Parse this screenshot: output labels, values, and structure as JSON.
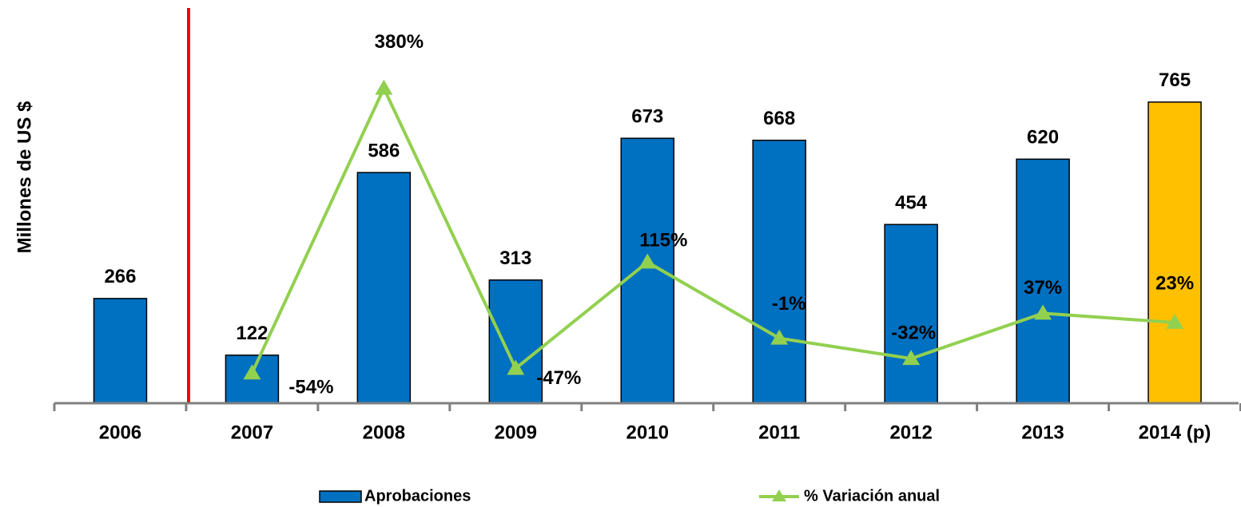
{
  "chart_data": {
    "type": "bar",
    "y_label": "Millones de US $",
    "categories": [
      "2006",
      "2007",
      "2008",
      "2009",
      "2010",
      "2011",
      "2012",
      "2013",
      "2014 (p)"
    ],
    "ylim": [
      0,
      1000
    ],
    "y2lim": [
      -100,
      500
    ],
    "legend": "bottom",
    "series": [
      {
        "name": "Aprobaciones",
        "type": "bar",
        "color": "#0070c0",
        "point_colors": [
          "#0070c0",
          "#0070c0",
          "#0070c0",
          "#0070c0",
          "#0070c0",
          "#0070c0",
          "#0070c0",
          "#0070c0",
          "#ffc000"
        ],
        "values": [
          266,
          122,
          586,
          313,
          673,
          668,
          454,
          620,
          765
        ]
      },
      {
        "name": "% Variación anual",
        "type": "line",
        "axis": "y2",
        "color": "#92d050",
        "values": [
          null,
          -54,
          380,
          -47,
          115,
          -1,
          -32,
          37,
          23
        ],
        "value_labels": [
          null,
          "-54%",
          "380%",
          "-47%",
          "115%",
          "-1%",
          "-32%",
          "37%",
          "23%"
        ]
      }
    ]
  }
}
